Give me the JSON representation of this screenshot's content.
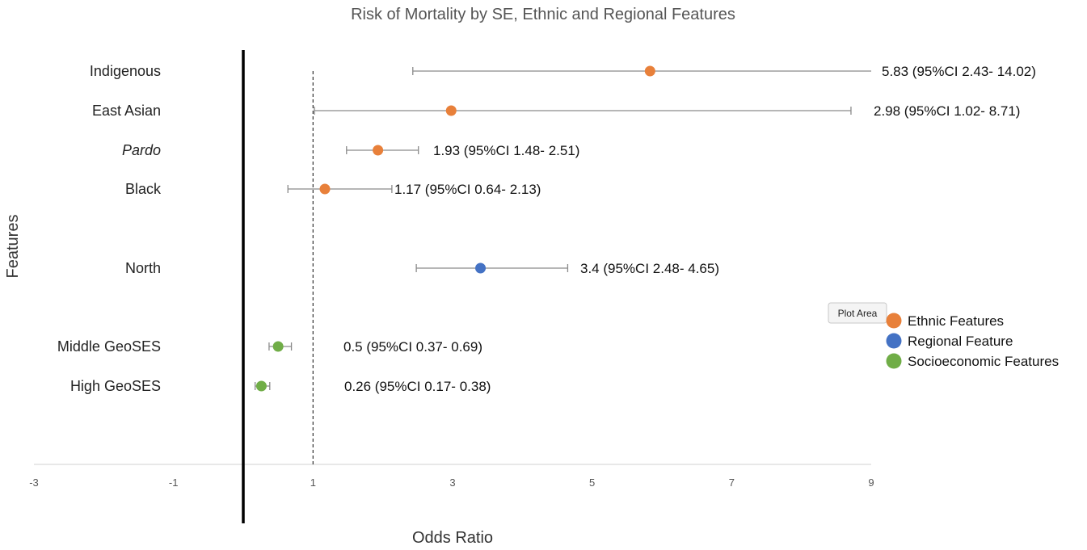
{
  "chart_data": {
    "type": "scatter",
    "subtype": "forest-plot",
    "title": "Risk of Mortality by SE, Ethnic and Regional Features",
    "xlabel": "Odds Ratio",
    "ylabel": "Features",
    "xlim": [
      -3,
      9
    ],
    "x_ticks": [
      "-3",
      "-1",
      "1",
      "3",
      "5",
      "7",
      "9"
    ],
    "x_tick_values": [
      -3,
      -1,
      1,
      3,
      5,
      7,
      9
    ],
    "grid": false,
    "reference_line": 1,
    "zero_line": 0,
    "legend_position": "right",
    "series": [
      {
        "name": "Ethnic Features",
        "color": "#E8803A",
        "points": [
          {
            "label": "Indigenous",
            "italic": false,
            "or": 5.83,
            "lo": 2.43,
            "hi": 14.02,
            "text": "5.83 (95%CI 2.43- 14.02)"
          },
          {
            "label": "East Asian",
            "italic": false,
            "or": 2.98,
            "lo": 1.02,
            "hi": 8.71,
            "text": "2.98 (95%CI 1.02- 8.71)"
          },
          {
            "label": "Pardo",
            "italic": true,
            "or": 1.93,
            "lo": 1.48,
            "hi": 2.51,
            "text": "1.93 (95%CI 1.48- 2.51)"
          },
          {
            "label": "Black",
            "italic": false,
            "or": 1.17,
            "lo": 0.64,
            "hi": 2.13,
            "text": "1.17 (95%CI 0.64- 2.13)"
          }
        ]
      },
      {
        "name": "Regional Feature",
        "color": "#4472C4",
        "points": [
          {
            "label": "North",
            "italic": false,
            "or": 3.4,
            "lo": 2.48,
            "hi": 4.65,
            "text": "3.4 (95%CI 2.48- 4.65)"
          }
        ]
      },
      {
        "name": "Socioeconomic Features",
        "color": "#70AD47",
        "points": [
          {
            "label": "Middle GeoSES",
            "italic": false,
            "or": 0.5,
            "lo": 0.37,
            "hi": 0.69,
            "text": "0.5 (95%CI 0.37- 0.69)"
          },
          {
            "label": "High GeoSES",
            "italic": false,
            "or": 0.26,
            "lo": 0.17,
            "hi": 0.38,
            "text": "0.26 (95%CI 0.17- 0.38)"
          }
        ]
      }
    ]
  },
  "tooltip": {
    "text": "Plot Area"
  }
}
